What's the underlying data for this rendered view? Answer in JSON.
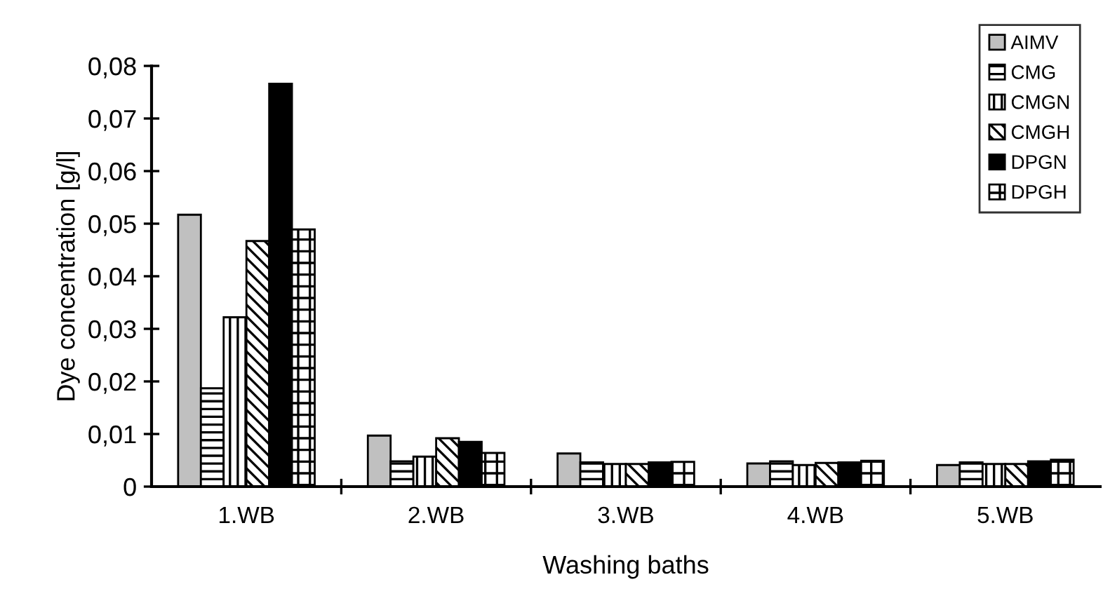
{
  "chart_data": {
    "type": "bar",
    "xlabel": "Washing baths",
    "ylabel": "Dye concentration [g/l]",
    "categories": [
      "1.WB",
      "2.WB",
      "3.WB",
      "4.WB",
      "5.WB"
    ],
    "series": [
      {
        "name": "AIMV",
        "color": "#c0c0c0",
        "values": [
          0.0517,
          0.0097,
          0.0063,
          0.0044,
          0.0041
        ]
      },
      {
        "name": "CMG",
        "color": "#000000",
        "values": [
          0.0187,
          0.0048,
          0.0046,
          0.0048,
          0.0046
        ]
      },
      {
        "name": "CMGN",
        "color": "#000000",
        "values": [
          0.0322,
          0.0057,
          0.0043,
          0.0041,
          0.0043
        ]
      },
      {
        "name": "CMGH",
        "color": "#000000",
        "values": [
          0.0467,
          0.0092,
          0.0043,
          0.0045,
          0.0043
        ]
      },
      {
        "name": "DPGN",
        "color": "#000000",
        "values": [
          0.0766,
          0.0085,
          0.0046,
          0.0046,
          0.0048
        ]
      },
      {
        "name": "DPGH",
        "color": "#000000",
        "values": [
          0.0489,
          0.0064,
          0.0047,
          0.0049,
          0.0051
        ]
      }
    ],
    "ylim": [
      0,
      0.08
    ],
    "yticks": [
      0,
      {
        "value": 0.01,
        "label": "0,01"
      },
      {
        "value": 0.02,
        "label": "0,02"
      },
      {
        "value": 0.03,
        "label": "0,03"
      },
      {
        "value": 0.04,
        "label": "0,04"
      },
      {
        "value": 0.05,
        "label": "0,05"
      },
      {
        "value": 0.06,
        "label": "0,06"
      },
      {
        "value": 0.07,
        "label": "0,07"
      },
      {
        "value": 0.08,
        "label": "0,08"
      }
    ],
    "grid": false,
    "legend": "top right"
  }
}
